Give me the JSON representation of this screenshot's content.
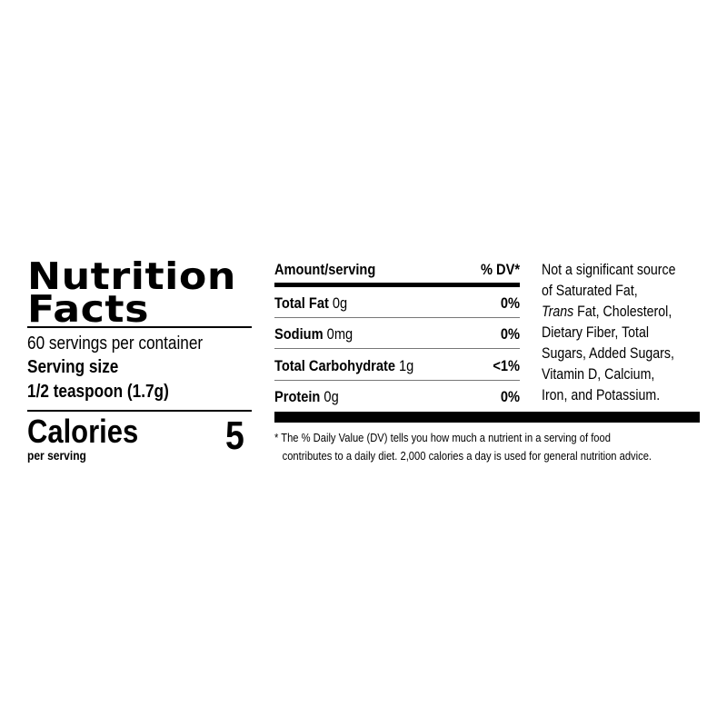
{
  "label": {
    "title_line1": "Nutrition",
    "title_line2": "Facts",
    "servings_per_container": "60 servings per container",
    "serving_size_label": "Serving size",
    "serving_size_value": "1/2 teaspoon (1.7g)",
    "calories_label": "Calories",
    "calories_sub": "per serving",
    "calories_value": "5",
    "table_header": {
      "left": "Amount/serving",
      "right": "% DV*"
    },
    "nutrients": [
      {
        "name": "Total Fat",
        "amount": "0g",
        "dv": "0%"
      },
      {
        "name": "Sodium",
        "amount": "0mg",
        "dv": "0%"
      },
      {
        "name": "Total Carbohydrate",
        "amount": "1g",
        "dv": "<1%"
      },
      {
        "name": "Protein",
        "amount": "0g",
        "dv": "0%"
      }
    ],
    "side_note": {
      "line1": "Not a significant source",
      "line2": "of Saturated Fat,",
      "line3_italic": "Trans",
      "line3_rest": " Fat, Cholesterol,",
      "line4": "Dietary Fiber, Total",
      "line5": "Sugars, Added Sugars,",
      "line6": "Vitamin D, Calcium,",
      "line7": "Iron, and Potassium."
    },
    "footnote_line1": "* The % Daily Value (DV) tells you how much a nutrient in a serving of food",
    "footnote_line2": "contributes to a daily diet. 2,000 calories a day is used for general nutrition advice."
  }
}
